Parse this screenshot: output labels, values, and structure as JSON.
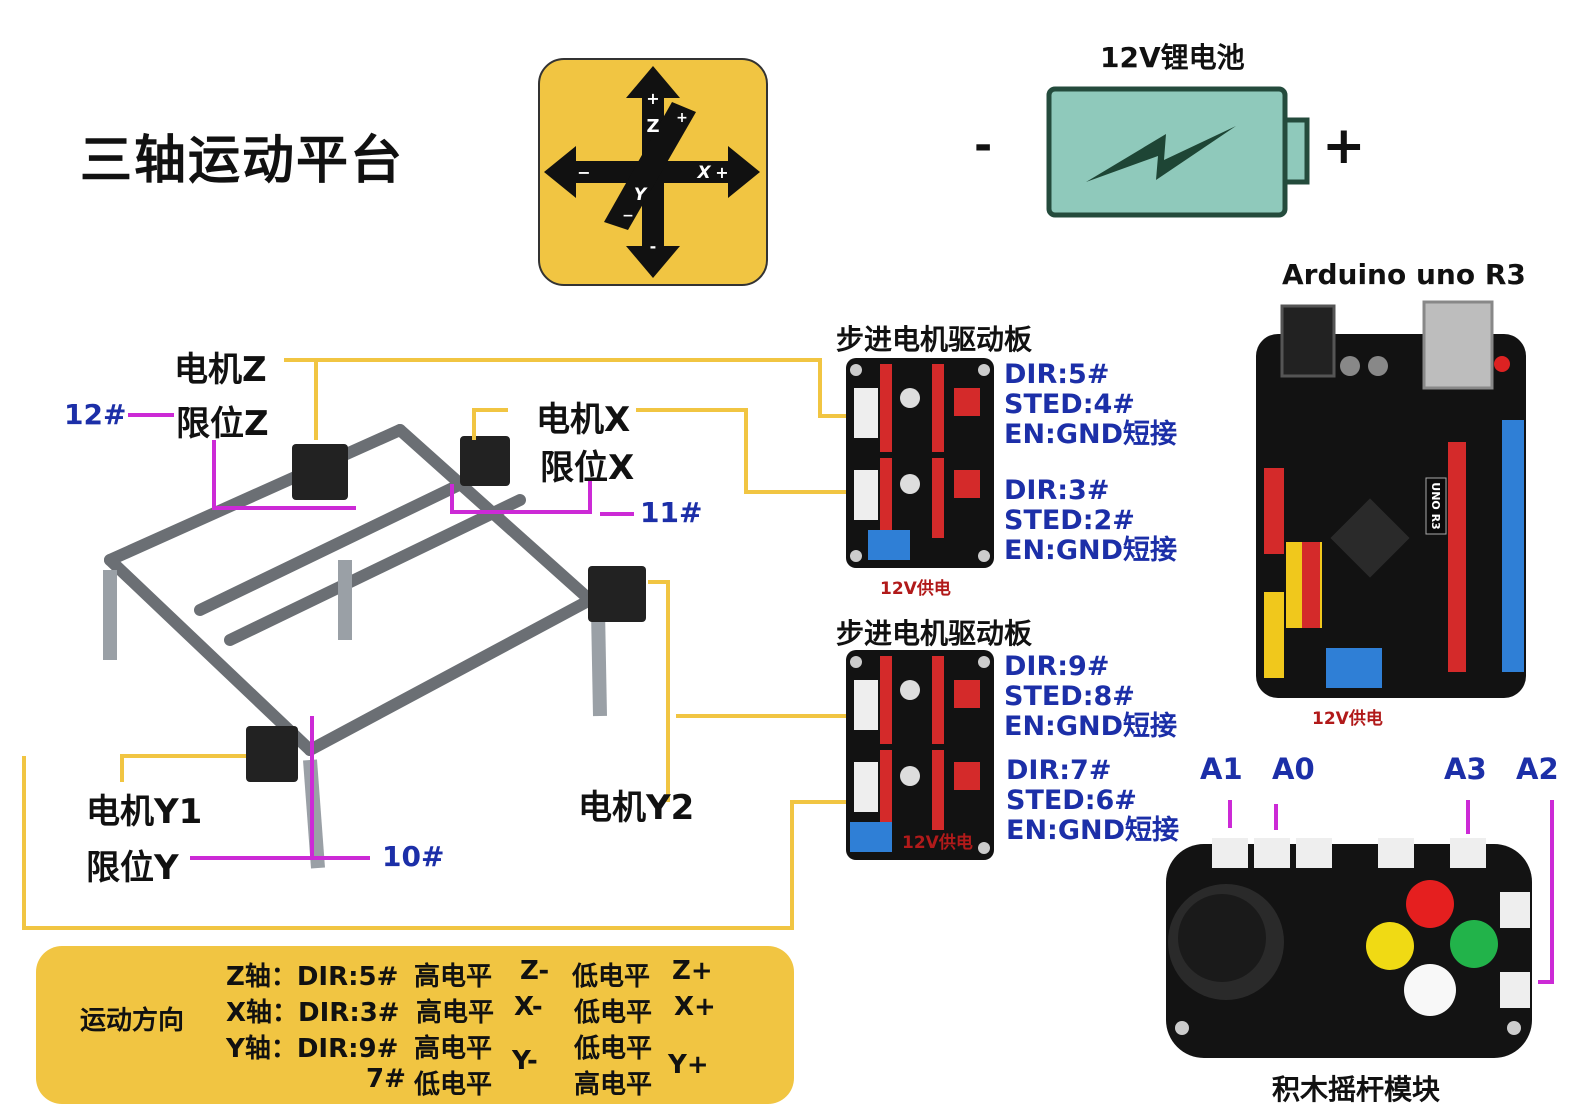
{
  "title": "三轴运动平台",
  "axis_icon": {
    "z_plus": "+",
    "z": "Z",
    "z_minus": "-",
    "x": "X",
    "x_plus": "+",
    "x_minus": "−",
    "y": "Y",
    "y_minus": "−",
    "top_right": "+"
  },
  "battery": {
    "label": "12V锂电池",
    "minus": "-",
    "plus": "+",
    "color": "#8fc9bb"
  },
  "arduino": {
    "label": "Arduino uno R3",
    "board_text": "UNO R3",
    "power": "12V供电"
  },
  "driver_top": {
    "label": "步进电机驱动板",
    "power": "12V供电",
    "ch1": {
      "dir": "DIR:5#",
      "step": "STED:4#",
      "en": "EN:GND短接"
    },
    "ch2": {
      "dir": "DIR:3#",
      "step": "STED:2#",
      "en": "EN:GND短接"
    }
  },
  "driver_bottom": {
    "label": "步进电机驱动板",
    "power": "12V供电",
    "ch1": {
      "dir": "DIR:9#",
      "step": "STED:8#",
      "en": "EN:GND短接"
    },
    "ch2": {
      "dir": "DIR:7#",
      "step": "STED:6#",
      "en": "EN:GND短接"
    }
  },
  "motors": {
    "z": "电机Z",
    "limit_z": "限位Z",
    "pin_z": "12#",
    "x": "电机X",
    "limit_x": "限位X",
    "pin_x": "11#",
    "y1": "电机Y1",
    "limit_y": "限位Y",
    "pin_y": "10#",
    "y2": "电机Y2"
  },
  "joystick": {
    "label": "积木摇杆模块",
    "a1": "A1",
    "a0": "A0",
    "a3": "A3",
    "a2": "A2"
  },
  "legend": {
    "title": "运动方向",
    "z_axis": "Z轴：DIR:5#",
    "z_high": "高电平",
    "z_minus": "Z-",
    "z_low": "低电平",
    "z_plus": "Z+",
    "x_axis": "X轴：DIR:3#",
    "x_high": "高电平",
    "x_minus": "X-",
    "x_low": "低电平",
    "x_plus": "X+",
    "y_axis": "Y轴：DIR:9#",
    "y_high": "高电平",
    "y_minus": "Y-",
    "y_low": "低电平",
    "y_plus": "Y+",
    "y_pin7": "7#",
    "y_low2": "低电平",
    "y_high2": "高电平"
  },
  "colors": {
    "wire_yellow": "#f1c542",
    "wire_magenta": "#cc2ad6",
    "legend_bg": "#f1c542",
    "label_blue": "#1c2fa8",
    "power_red": "#b11a1a"
  }
}
